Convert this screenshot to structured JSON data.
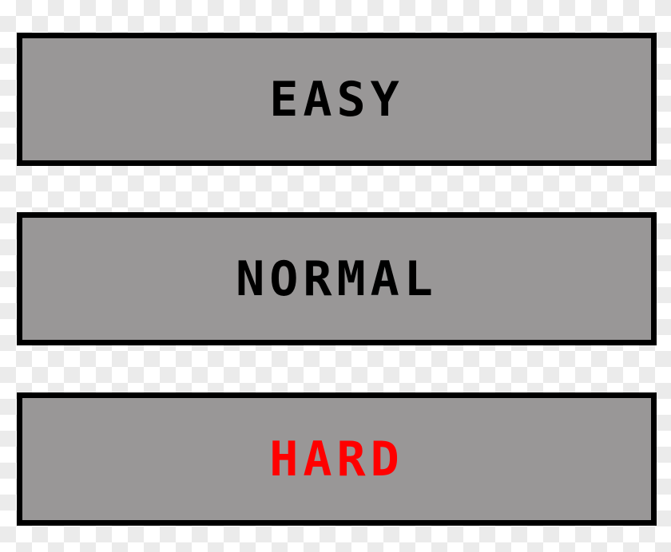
{
  "menu": {
    "options": [
      {
        "label": "EASY",
        "color": "#000000"
      },
      {
        "label": "NORMAL",
        "color": "#000000"
      },
      {
        "label": "HARD",
        "color": "#ff0000"
      }
    ]
  }
}
